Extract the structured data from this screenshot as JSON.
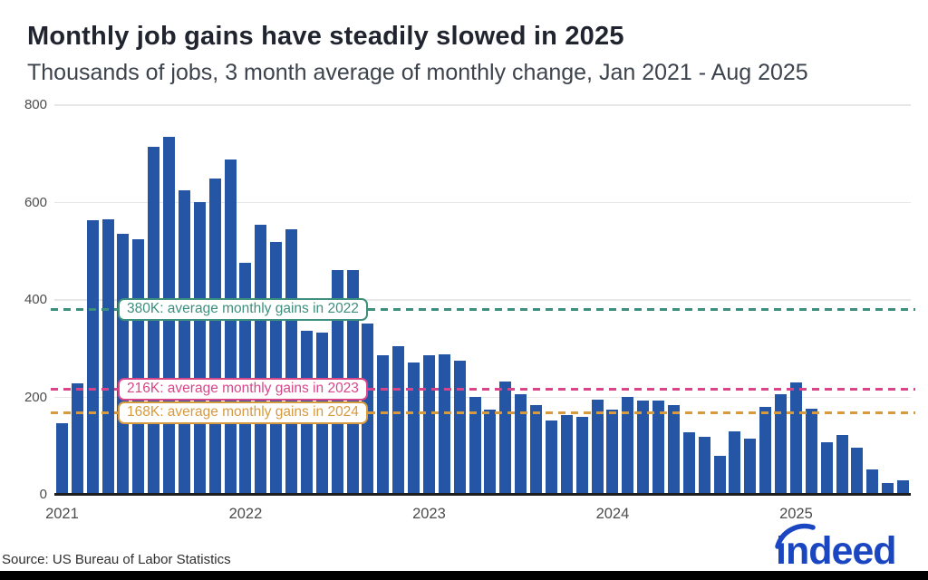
{
  "header": {
    "title": "Monthly job gains have steadily slowed in 2025",
    "subtitle": "Thousands of jobs, 3 month average of monthly change, Jan 2021 - Aug 2025"
  },
  "chart_data": {
    "type": "bar",
    "title": "Monthly job gains have steadily slowed in 2025",
    "ylabel": "Thousands of jobs, 3 month average of monthly change",
    "x_start": "Jan 2021",
    "x_end": "Aug 2025",
    "ylim": [
      0,
      800
    ],
    "yticks": [
      0,
      200,
      400,
      600,
      800
    ],
    "grid": true,
    "bar_color": "#2556A6",
    "series_by_year": [
      {
        "year": "2021",
        "values": [
          147,
          228,
          563,
          565,
          536,
          525,
          715,
          735,
          626,
          601,
          650,
          688
        ]
      },
      {
        "year": "2022",
        "values": [
          476,
          554,
          520,
          545,
          337,
          333,
          462,
          462,
          352,
          286,
          306,
          272
        ]
      },
      {
        "year": "2023",
        "values": [
          286,
          289,
          275,
          201,
          174,
          232,
          207,
          184,
          152,
          164,
          160,
          196
        ]
      },
      {
        "year": "2024",
        "values": [
          174,
          201,
          193,
          193,
          185,
          129,
          119,
          80,
          131,
          116,
          181,
          207
        ]
      },
      {
        "year": "2025",
        "values": [
          230,
          177,
          108,
          122,
          96,
          52,
          25,
          29
        ]
      }
    ],
    "year_ticks": [
      {
        "label": "2021",
        "month_index": 0
      },
      {
        "label": "2022",
        "month_index": 12
      },
      {
        "label": "2023",
        "month_index": 24
      },
      {
        "label": "2024",
        "month_index": 36
      },
      {
        "label": "2025",
        "month_index": 48
      }
    ],
    "reference_lines": [
      {
        "value": 380,
        "label": "380K: average monthly gains in 2022",
        "color": "#3C8F7C"
      },
      {
        "value": 216,
        "label": "216K: average monthly gains in 2023",
        "color": "#D84689"
      },
      {
        "value": 168,
        "label": "168K: average monthly gains in 2024",
        "color": "#D79A3E"
      }
    ]
  },
  "footer": {
    "source": "Source: US Bureau of Labor Statistics",
    "logo_text": "indeed",
    "logo_color": "#1A46C2"
  }
}
